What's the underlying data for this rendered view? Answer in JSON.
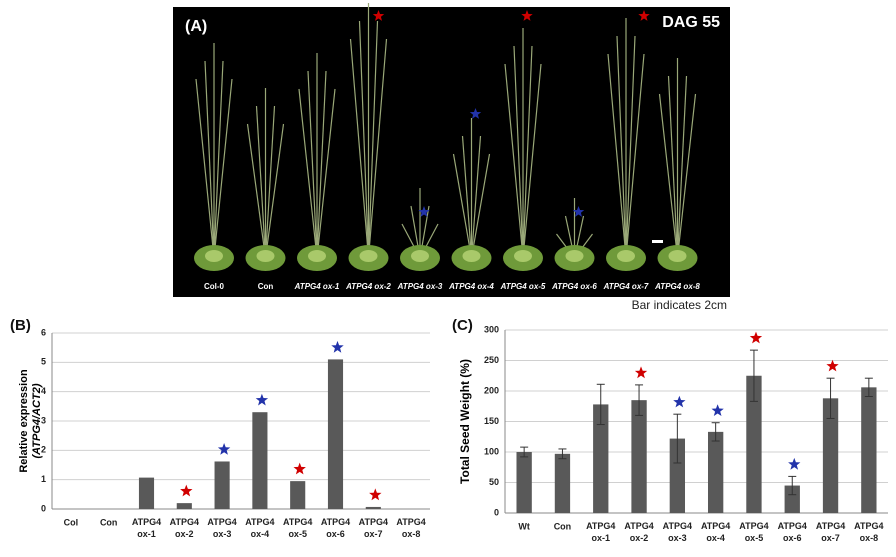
{
  "photo": {
    "panel_label": "(A)",
    "stage": "DAG 55",
    "labels": [
      "Col-0",
      "Con",
      "ATPG4 ox-1",
      "ATPG4 ox-2",
      "ATPG4 ox-3",
      "ATPG4 ox-4",
      "ATPG4 ox-5",
      "ATPG4 ox-6",
      "ATPG4 ox-7",
      "ATPG4 ox-8"
    ],
    "scale_note": "Bar indicates 2cm"
  },
  "chart_data": [
    {
      "type": "bar",
      "panel_label": "(B)",
      "y_label": "Relative expression",
      "y_label_sub": "(ATPG4/ACT2)",
      "categories": [
        "Col",
        "Con",
        "ATPG4 ox-1",
        "ATPG4 ox-2",
        "ATPG4 ox-3",
        "ATPG4 ox-4",
        "ATPG4 ox-5",
        "ATPG4 ox-6",
        "ATPG4 ox-7",
        "ATPG4 ox-8"
      ],
      "values": [
        0,
        0,
        1.07,
        0.2,
        1.62,
        3.3,
        0.95,
        5.1,
        0.07,
        0
      ],
      "color": "#595959",
      "star_colors": [
        null,
        null,
        null,
        "#d00000",
        "#2233aa",
        "#2233aa",
        "#d00000",
        "#2233aa",
        "#d00000",
        null
      ],
      "ylim": [
        0,
        6
      ],
      "yticks": [
        0,
        1,
        2,
        3,
        4,
        5,
        6
      ],
      "grid": true
    },
    {
      "type": "bar",
      "panel_label": "(C)",
      "y_label": "Total Seed Weight (%)",
      "categories": [
        "Wt",
        "Con",
        "ATPG4 ox-1",
        "ATPG4 ox-2",
        "ATPG4 ox-3",
        "ATPG4 ox-4",
        "ATPG4 ox-5",
        "ATPG4 ox-6",
        "ATPG4 ox-7",
        "ATPG4 ox-8"
      ],
      "values": [
        100,
        97,
        178,
        185,
        122,
        133,
        225,
        45,
        188,
        206
      ],
      "errors": [
        8,
        8,
        33,
        25,
        40,
        15,
        42,
        15,
        33,
        15
      ],
      "color": "#595959",
      "star_colors": [
        null,
        null,
        null,
        "#d00000",
        "#2233aa",
        "#2233aa",
        "#d00000",
        "#2233aa",
        "#d00000",
        null
      ],
      "ylim": [
        0,
        300
      ],
      "yticks": [
        0,
        50,
        100,
        150,
        200,
        250,
        300
      ],
      "grid": true
    }
  ]
}
